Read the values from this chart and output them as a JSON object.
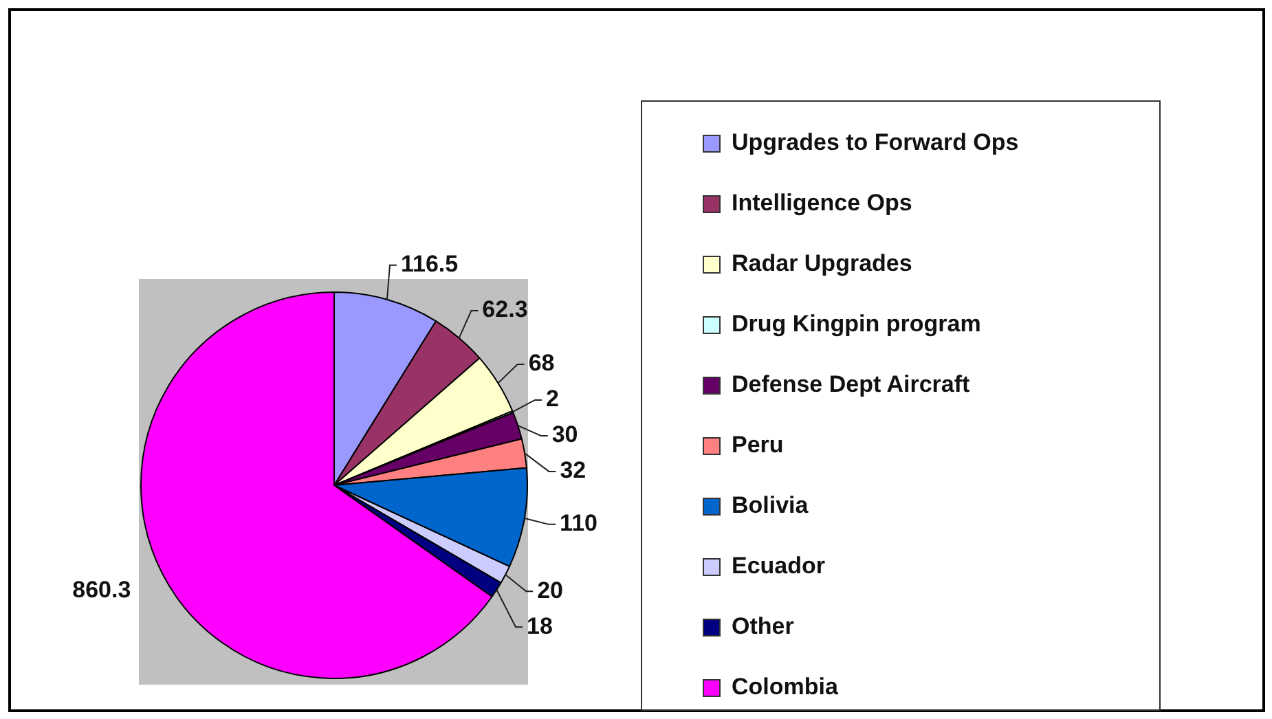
{
  "chart_data": {
    "type": "pie",
    "categories": [
      "Upgrades to Forward Ops",
      "Intelligence Ops",
      "Radar Upgrades",
      "Drug Kingpin program",
      "Defense Dept Aircraft",
      "Peru",
      "Bolivia",
      "Ecuador",
      "Other",
      "Colombia"
    ],
    "values": [
      116.5,
      62.3,
      68,
      2,
      30,
      32,
      110,
      20,
      18,
      860.3
    ],
    "colors": [
      "#9999ff",
      "#993366",
      "#ffffcc",
      "#ccffff",
      "#660066",
      "#ff8080",
      "#0066cc",
      "#ccccff",
      "#000080",
      "#ff00ff"
    ],
    "data_labels": true,
    "legend": "right"
  }
}
